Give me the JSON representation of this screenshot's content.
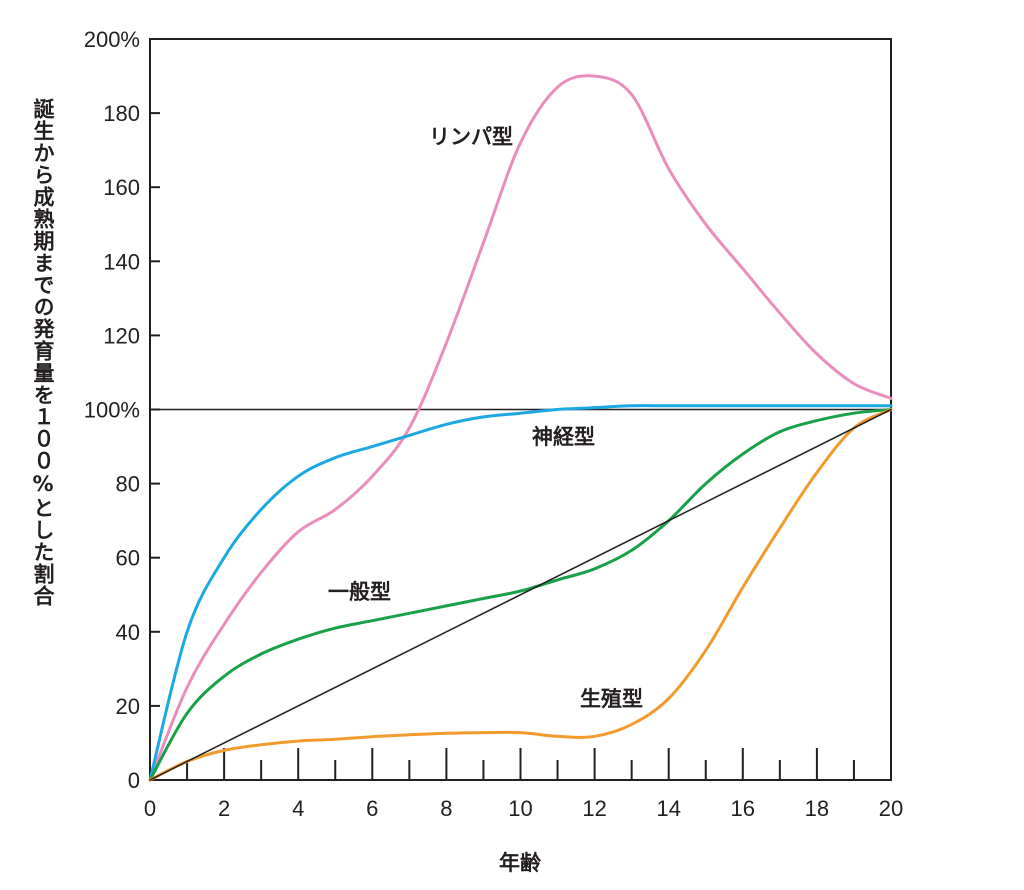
{
  "chart_data": {
    "type": "line",
    "ylabel": "誕生から成熟期までの発育量を１００%とした割合",
    "xlabel": "年齢",
    "xlim": [
      0,
      20
    ],
    "ylim": [
      0,
      200
    ],
    "x_ticks": [
      "0",
      "2",
      "4",
      "6",
      "8",
      "10",
      "12",
      "14",
      "16",
      "18",
      "20"
    ],
    "y_ticks": [
      {
        "value": 0,
        "label": "0"
      },
      {
        "value": 20,
        "label": "20"
      },
      {
        "value": 40,
        "label": "40"
      },
      {
        "value": 60,
        "label": "60"
      },
      {
        "value": 80,
        "label": "80"
      },
      {
        "value": 100,
        "label": "100%"
      },
      {
        "value": 120,
        "label": "120"
      },
      {
        "value": 140,
        "label": "140"
      },
      {
        "value": 160,
        "label": "160"
      },
      {
        "value": 180,
        "label": "180"
      },
      {
        "value": 200,
        "label": "200%"
      }
    ],
    "reference_line_y": 100,
    "series": [
      {
        "name": "リンパ型",
        "color": "#ea8dbd",
        "x": [
          0,
          1,
          2,
          3,
          4,
          5,
          6,
          7,
          8,
          9,
          10,
          11,
          12,
          13,
          14,
          15,
          16,
          17,
          18,
          19,
          20
        ],
        "y": [
          0,
          25,
          42,
          56,
          67,
          73,
          82,
          95,
          118,
          145,
          172,
          187,
          190,
          185,
          165,
          150,
          138,
          126,
          115,
          107,
          103
        ]
      },
      {
        "name": "神経型",
        "color": "#1ba8e3",
        "x": [
          0,
          1,
          2,
          3,
          4,
          5,
          6,
          7,
          8,
          9,
          10,
          11,
          12,
          13,
          14,
          15,
          16,
          17,
          18,
          19,
          20
        ],
        "y": [
          0,
          40,
          60,
          73,
          82,
          87,
          90,
          93,
          96,
          98,
          99,
          100,
          100.5,
          101,
          101,
          101,
          101,
          101,
          101,
          101,
          101
        ]
      },
      {
        "name": "一般型",
        "color": "#18a148",
        "x": [
          0,
          1,
          2,
          3,
          4,
          5,
          6,
          7,
          8,
          9,
          10,
          11,
          12,
          13,
          14,
          15,
          16,
          17,
          18,
          19,
          20
        ],
        "y": [
          0,
          18,
          28,
          34,
          38,
          41,
          43,
          45,
          47,
          49,
          51,
          54,
          57,
          62,
          70,
          80,
          88,
          94,
          97,
          99,
          100
        ]
      },
      {
        "name": "生殖型",
        "color": "#f29a2b",
        "x": [
          0,
          1,
          2,
          3,
          4,
          5,
          6,
          7,
          8,
          9,
          10,
          11,
          12,
          13,
          14,
          15,
          16,
          17,
          18,
          19,
          20
        ],
        "y": [
          0,
          5,
          8,
          9.5,
          10.5,
          11,
          11.7,
          12.2,
          12.6,
          12.8,
          12.8,
          11.8,
          11.8,
          15,
          22,
          35,
          52,
          68,
          83,
          95,
          100
        ]
      },
      {
        "name": "",
        "color": "#231f20",
        "x": [
          0,
          20
        ],
        "y": [
          0,
          100
        ]
      }
    ],
    "labels": [
      "リンパ型",
      "神経型",
      "一般型",
      "生殖型"
    ]
  }
}
